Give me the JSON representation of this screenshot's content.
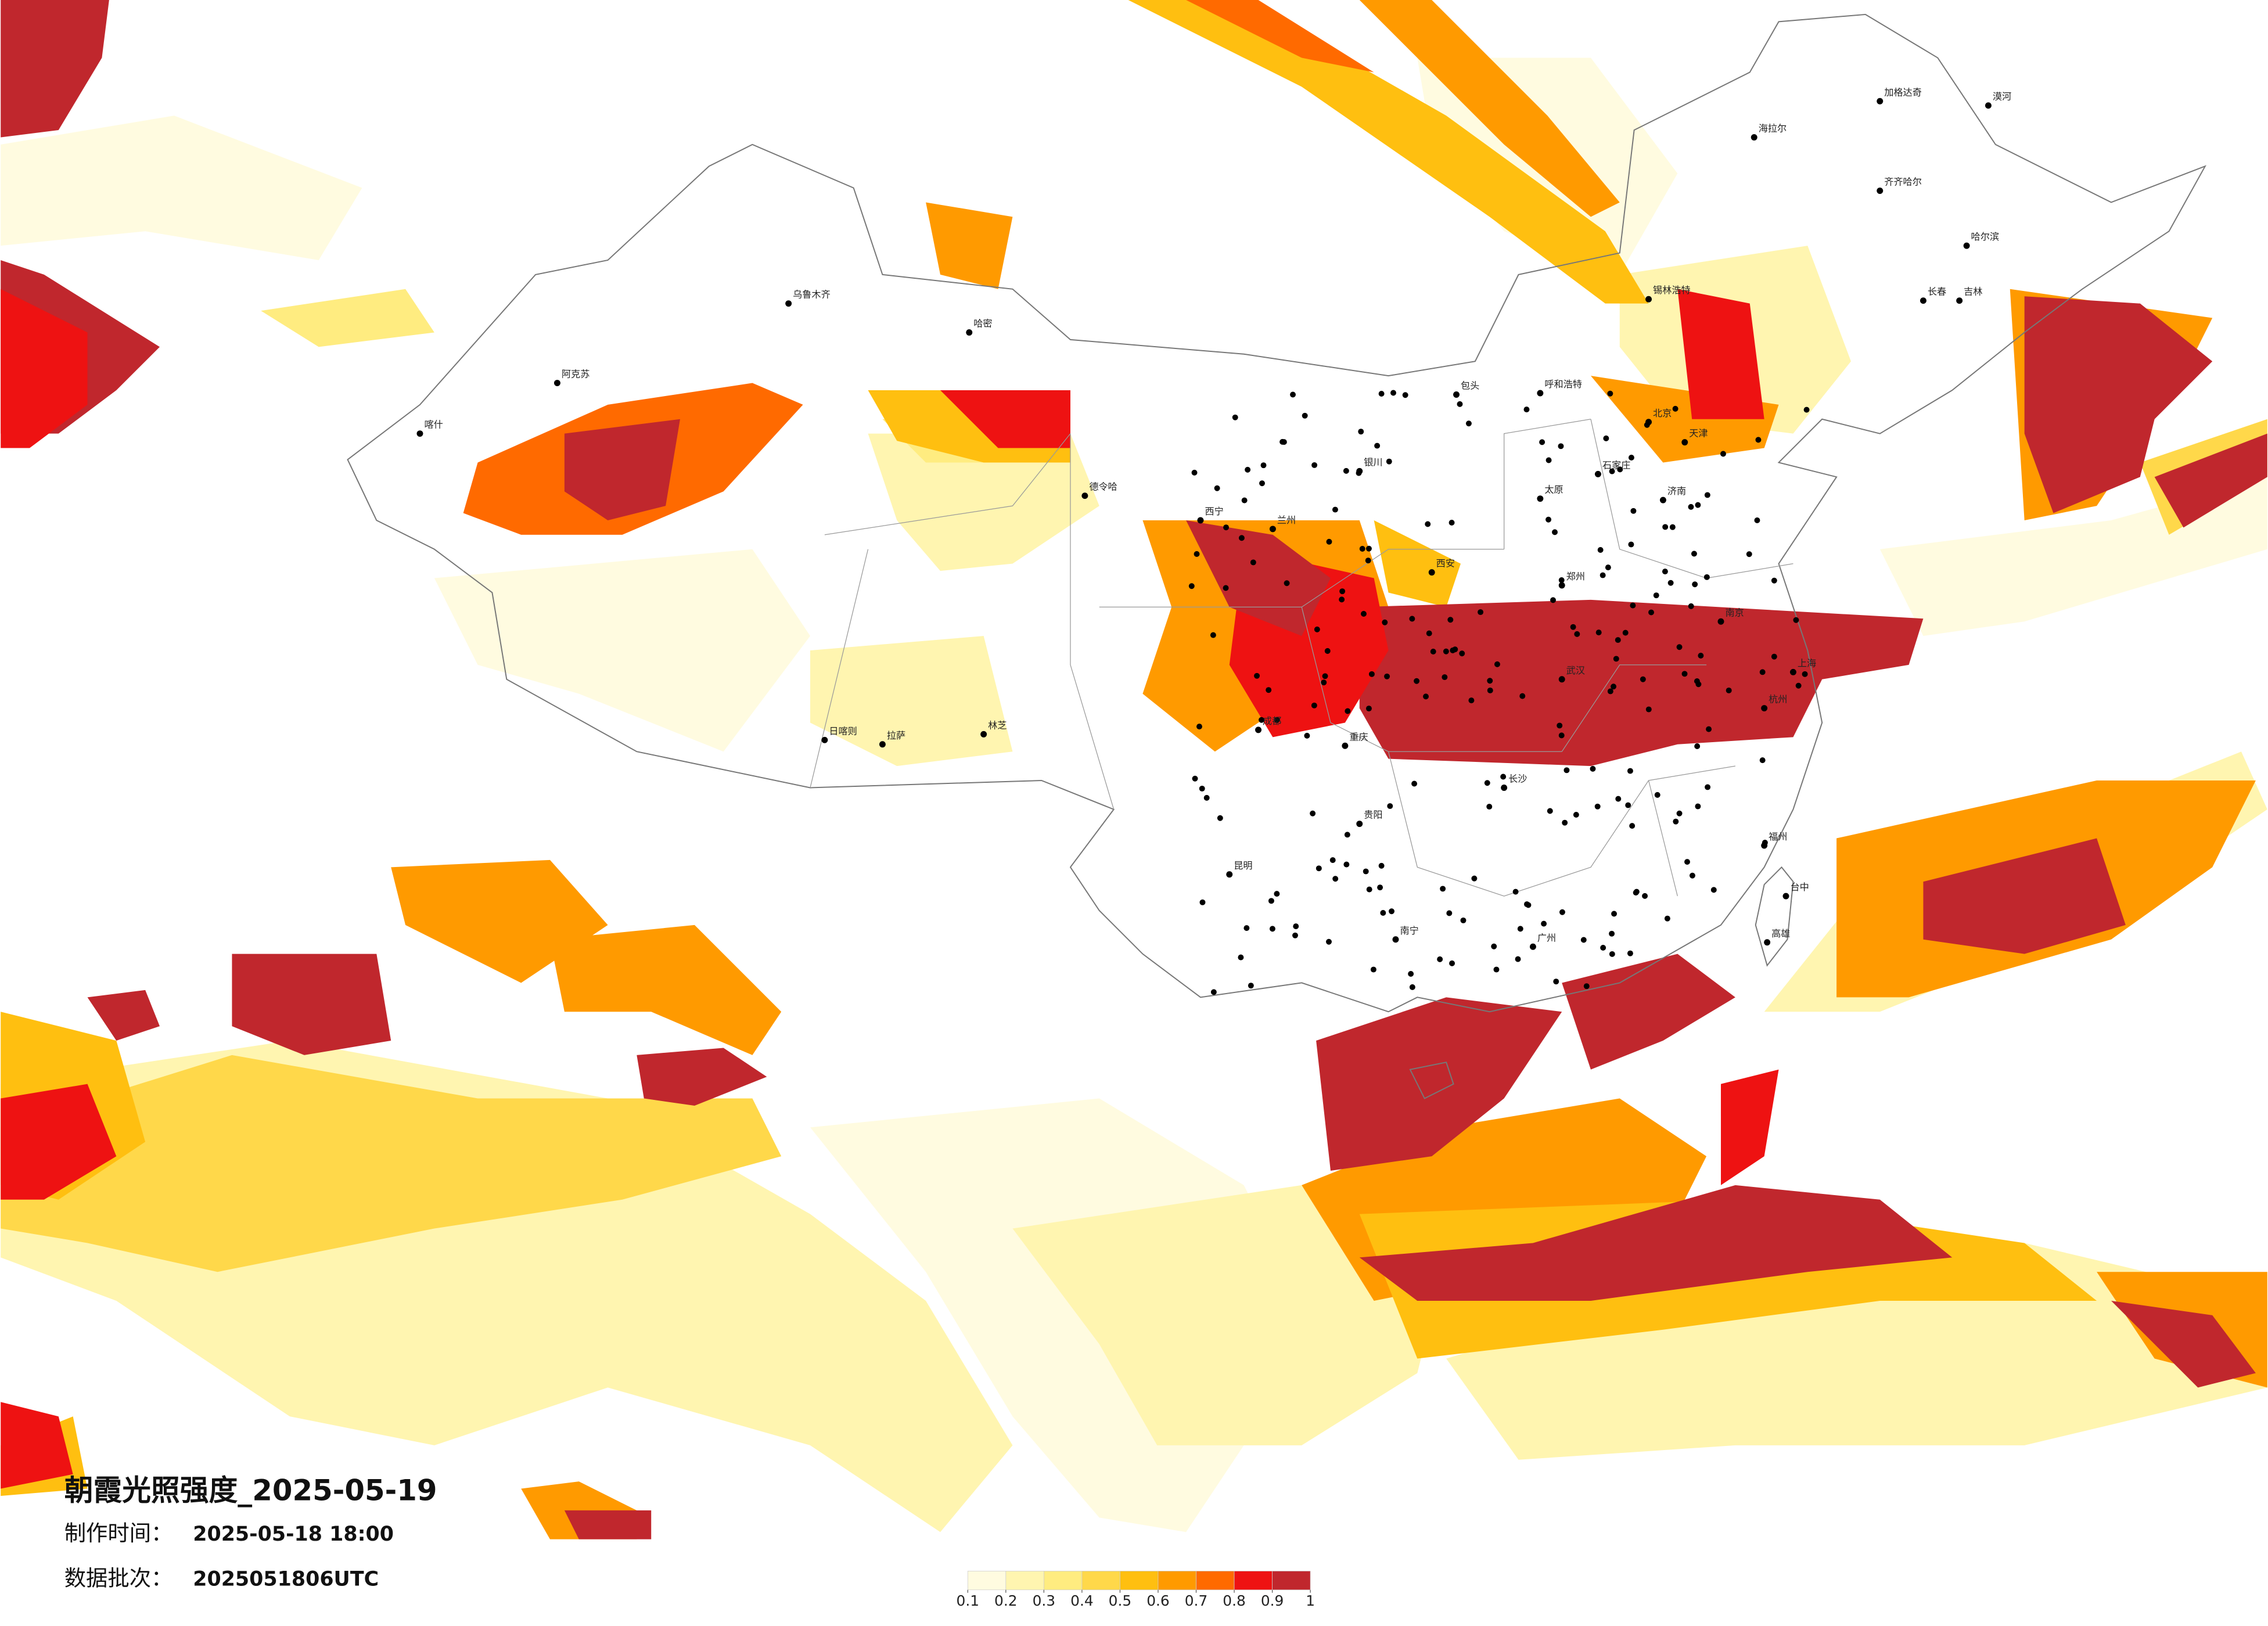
{
  "title": "朝霞光照强度_2025-05-19",
  "made_time_label": "制作时间：",
  "made_time": "2025-05-18 18:00",
  "batch_label": "数据批次：",
  "batch": "2025051806UTC",
  "legend": {
    "ticks": [
      0.1,
      0.2,
      0.3,
      0.4,
      0.5,
      0.6,
      0.7,
      0.8,
      0.9,
      1
    ],
    "colors": [
      "#fffbe0",
      "#fff5b0",
      "#ffec80",
      "#ffd84a",
      "#ffbf10",
      "#ff9a00",
      "#ff6a00",
      "#ee1212",
      "#c0272d"
    ]
  },
  "cities": [
    "漠河",
    "加格达奇",
    "海拉尔",
    "齐齐哈尔",
    "哈尔滨",
    "长春",
    "吉林",
    "锡林浩特",
    "呼和浩特",
    "包头",
    "北京",
    "天津",
    "石家庄",
    "太原",
    "济南",
    "郑州",
    "西安",
    "兰州",
    "西宁",
    "银川",
    "成都",
    "重庆",
    "贵阳",
    "昆明",
    "南宁",
    "广州",
    "长沙",
    "武汉",
    "南京",
    "上海",
    "杭州",
    "福州",
    "台中",
    "高雄",
    "拉萨",
    "日喀则",
    "林芝",
    "乌鲁木齐",
    "喀什",
    "阿克苏",
    "哈密",
    "德令哈"
  ]
}
